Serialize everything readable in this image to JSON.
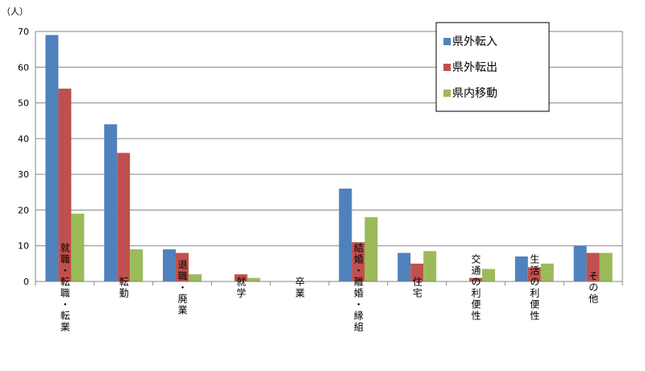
{
  "chart_data": {
    "type": "bar",
    "y_unit": "（人）",
    "ylim": [
      0,
      70
    ],
    "yticks": [
      0,
      10,
      20,
      30,
      40,
      50,
      60,
      70
    ],
    "grid": true,
    "legend_position": "top-right",
    "categories": [
      "就職・転職・転業",
      "転勤",
      "退職・廃業",
      "就学",
      "卒業",
      "結婚・離婚・縁組",
      "住宅",
      "交通の利便性",
      "生活の利便性",
      "その他"
    ],
    "series": [
      {
        "name": "県外転入",
        "color": "#4F81BD",
        "values": [
          69,
          44,
          9,
          0,
          0,
          26,
          8,
          0,
          7,
          10
        ]
      },
      {
        "name": "県外転出",
        "color": "#C0504D",
        "values": [
          54,
          36,
          8,
          2,
          0,
          11,
          5,
          1,
          4,
          8
        ]
      },
      {
        "name": "県内移動",
        "color": "#9BBB59",
        "values": [
          19,
          9,
          2,
          1,
          0,
          18,
          8.5,
          3.5,
          5,
          8
        ]
      }
    ]
  }
}
